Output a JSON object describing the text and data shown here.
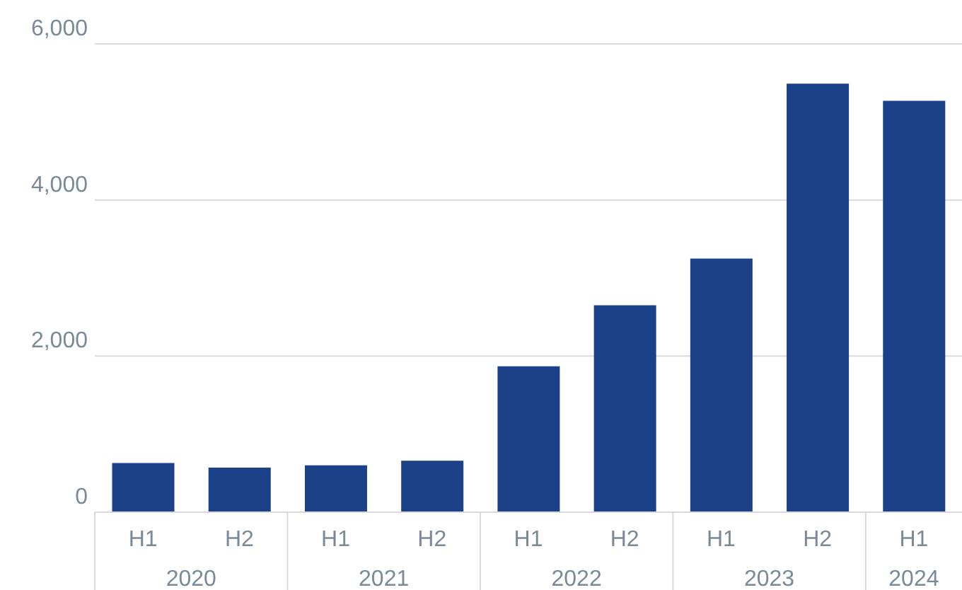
{
  "chart_data": {
    "type": "bar",
    "categories": [
      "H1\n2020",
      "H2",
      "H1\n2021",
      "H2",
      "H1\n2022",
      "H2",
      "H1\n2023",
      "H2",
      "H1\n2024"
    ],
    "values": [
      630,
      570,
      600,
      660,
      1870,
      2650,
      3250,
      5490,
      5270
    ],
    "color": "#1b4189",
    "ylim": [
      0,
      6000
    ],
    "yticks": [
      {
        "value": 0,
        "label": "0"
      },
      {
        "value": 2000,
        "label": "2,000"
      },
      {
        "value": 4000,
        "label": "4,000"
      },
      {
        "value": 6000,
        "label": "6,000"
      }
    ],
    "grid": "y"
  }
}
